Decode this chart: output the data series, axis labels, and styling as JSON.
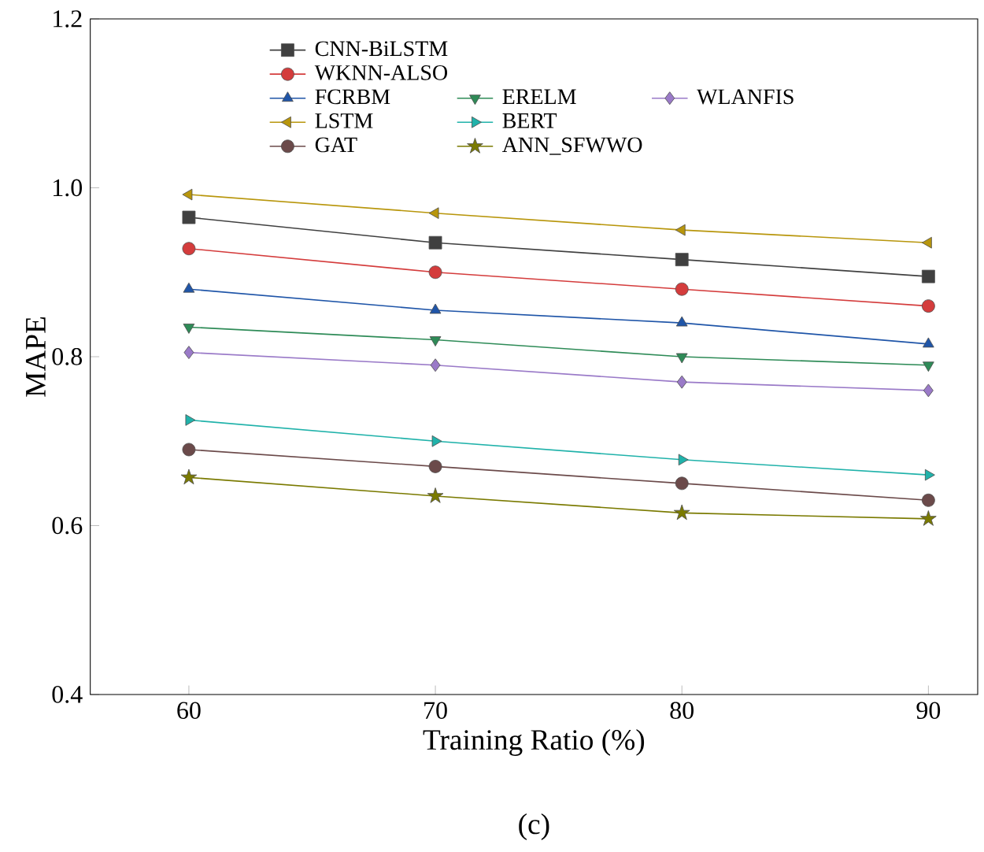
{
  "chart_data": {
    "type": "line",
    "xlabel": "Training Ratio (%)",
    "ylabel": "MAPE",
    "x": [
      60,
      70,
      80,
      90
    ],
    "xlim": [
      56,
      92
    ],
    "xticks": [
      60,
      70,
      80,
      90
    ],
    "ylim": [
      0.4,
      1.2
    ],
    "yticks": [
      {
        "value": 0.4,
        "label": "0.4"
      },
      {
        "value": 0.6,
        "label": "0.6"
      },
      {
        "value": 0.8,
        "label": "0.8"
      },
      {
        "value": 1.0,
        "label": "1.0"
      },
      {
        "value": 1.2,
        "label": "1.2"
      }
    ],
    "grid": false,
    "legend": "top",
    "line_style": "solid",
    "series": [
      {
        "name": "CNN-BiLSTM",
        "color": "#404040",
        "marker": "square",
        "values": [
          0.965,
          0.935,
          0.915,
          0.895
        ]
      },
      {
        "name": "WKNN-ALSO",
        "color": "#d43c3c",
        "marker": "circle",
        "values": [
          0.928,
          0.9,
          0.88,
          0.86
        ]
      },
      {
        "name": "FCRBM",
        "color": "#1f55a8",
        "marker": "triangle",
        "values": [
          0.88,
          0.855,
          0.84,
          0.815
        ]
      },
      {
        "name": "ERELM",
        "color": "#2e8b57",
        "marker": "triangle-down",
        "values": [
          0.835,
          0.82,
          0.8,
          0.79
        ]
      },
      {
        "name": "WLANFIS",
        "color": "#9a7ac8",
        "marker": "diamond",
        "values": [
          0.805,
          0.79,
          0.77,
          0.76
        ]
      },
      {
        "name": "LSTM",
        "color": "#b8960c",
        "marker": "triangle-left",
        "values": [
          0.992,
          0.97,
          0.95,
          0.935
        ]
      },
      {
        "name": "BERT",
        "color": "#20b2aa",
        "marker": "triangle-right",
        "values": [
          0.725,
          0.7,
          0.678,
          0.66
        ]
      },
      {
        "name": "GAT",
        "color": "#6b4a4a",
        "marker": "circle",
        "values": [
          0.69,
          0.67,
          0.65,
          0.63
        ]
      },
      {
        "name": "ANN_SFWWO",
        "color": "#7a7a00",
        "marker": "star",
        "values": [
          0.657,
          0.635,
          0.615,
          0.608
        ]
      }
    ],
    "annotations": [
      "(c)"
    ]
  }
}
